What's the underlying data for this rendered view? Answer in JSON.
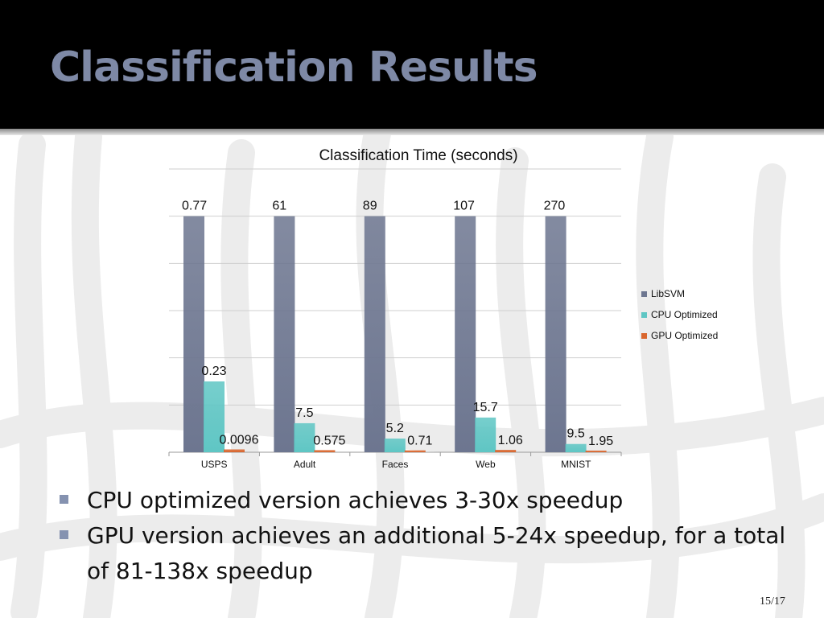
{
  "slide": {
    "title": "Classification Results",
    "page_number": "15/17",
    "bullets": [
      "CPU optimized version achieves 3-30x speedup",
      "GPU version achieves an additional 5-24x speedup, for a total of 81-138x speedup"
    ]
  },
  "colors": {
    "header_bg": "#000000",
    "title": "#7e89a6",
    "libsvm": "#6d7690",
    "cpu": "#5fc6c4",
    "gpu": "#d9662e",
    "bullet": "#8592b0"
  },
  "chart_data": {
    "type": "bar",
    "title": "Classification Time (seconds)",
    "categories": [
      "USPS",
      "Adult",
      "Faces",
      "Web",
      "MNIST"
    ],
    "series": [
      {
        "name": "LibSVM",
        "color": "#6d7690",
        "labels": [
          "0.77",
          "61",
          "89",
          "107",
          "270"
        ],
        "relative_height": [
          1,
          1,
          1,
          1,
          1
        ]
      },
      {
        "name": "CPU Optimized",
        "color": "#5fc6c4",
        "labels": [
          "0.23",
          "7.5",
          "5.2",
          "15.7",
          "9.5"
        ],
        "relative_height": [
          0.3,
          0.123,
          0.058,
          0.147,
          0.035
        ]
      },
      {
        "name": "GPU Optimized",
        "color": "#d9662e",
        "labels": [
          "0.0096",
          "0.575",
          "0.71",
          "1.06",
          "1.95"
        ],
        "relative_height": [
          0.012,
          0.009,
          0.008,
          0.01,
          0.007
        ]
      }
    ],
    "ylim": [
      0,
      1
    ],
    "grid": true,
    "legend_position": "right"
  }
}
